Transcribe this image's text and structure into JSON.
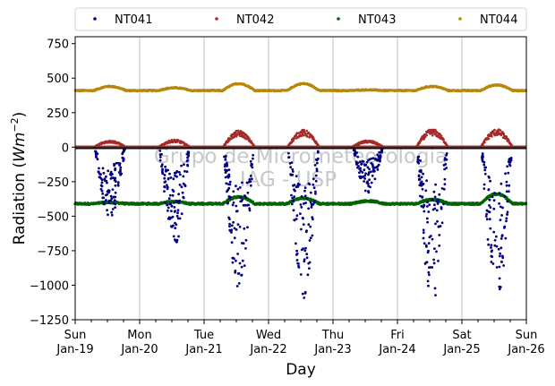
{
  "chart_data": {
    "type": "scatter",
    "ylabel_main": "Radiation (",
    "ylabel_unit": "Wm",
    "ylabel_exp": "−2",
    "ylabel_close": ")",
    "xlabel": "Day",
    "ylim": [
      -1250,
      800
    ],
    "yticks": [
      {
        "value": 750,
        "label": "750"
      },
      {
        "value": 500,
        "label": "500"
      },
      {
        "value": 250,
        "label": "250"
      },
      {
        "value": 0,
        "label": "0"
      },
      {
        "value": -250,
        "label": "−250"
      },
      {
        "value": -500,
        "label": "−500"
      },
      {
        "value": -750,
        "label": "−750"
      },
      {
        "value": -1000,
        "label": "−1000"
      },
      {
        "value": -1250,
        "label": "−1250"
      }
    ],
    "xlim": [
      "2020-01-19",
      "2020-01-26"
    ],
    "xticks": [
      {
        "day": 0,
        "line1": "Sun",
        "line2": "Jan-19"
      },
      {
        "day": 1,
        "line1": "Mon",
        "line2": "Jan-20"
      },
      {
        "day": 2,
        "line1": "Tue",
        "line2": "Jan-21"
      },
      {
        "day": 3,
        "line1": "Wed",
        "line2": "Jan-22"
      },
      {
        "day": 4,
        "line1": "Thu",
        "line2": "Jan-23"
      },
      {
        "day": 5,
        "line1": "Fri",
        "line2": "Jan-24"
      },
      {
        "day": 6,
        "line1": "Sat",
        "line2": "Jan-25"
      },
      {
        "day": 7,
        "line1": "Sun",
        "line2": "Jan-26"
      }
    ],
    "grid": "x-major",
    "legend_position": "top",
    "watermark": [
      "Grupo de Micrometeorologia",
      "IAG - USP"
    ],
    "series": [
      {
        "name": "NT041",
        "color": "#000080",
        "description": "Nighttime near 0; daytime strongly negative scattered points",
        "day_minima": [
          -520,
          -720,
          -1070,
          -1100,
          -330,
          -1150,
          -1150
        ]
      },
      {
        "name": "NT042",
        "color": "#a52a2a",
        "description": "Near 0 at night; small daytime bumps",
        "day_peaks": [
          45,
          50,
          110,
          115,
          45,
          120,
          120
        ]
      },
      {
        "name": "NT043",
        "color": "#006400",
        "description": "Around -410 with small daytime rise",
        "baseline": -410,
        "day_peaks": [
          -400,
          -395,
          -360,
          -370,
          -390,
          -380,
          -340
        ]
      },
      {
        "name": "NT044",
        "color": "#b8860b",
        "description": "Around 410 with small daytime rise",
        "baseline": 410,
        "day_peaks": [
          440,
          430,
          460,
          460,
          415,
          440,
          450
        ]
      }
    ]
  }
}
